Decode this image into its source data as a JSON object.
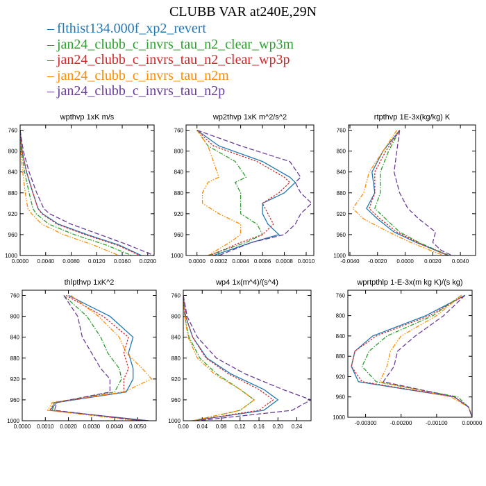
{
  "title": "CLUBB VAR at240E,29N",
  "series_styles": [
    {
      "name": "flthist134.000f_xp2_revert",
      "color": "#1f77b4",
      "dash": ""
    },
    {
      "name": "jan24_clubb_c_invrs_tau_n2_clear_wp3m",
      "color": "#2ca02c",
      "dash": "6,2,1.5,2"
    },
    {
      "name": "jan24_clubb_c_invrs_tau_n2_clear_wp3p",
      "color": "#d62728",
      "dash": "2.5,2"
    },
    {
      "name": "jan24_clubb_c_invrs_tau_n2m",
      "color": "#ff8c00",
      "dash": "6,2,1.5,2,1.5,2"
    },
    {
      "name": "jan24_clubb_c_invrs_tau_n2p",
      "color": "#6a3d9a",
      "dash": "7,3"
    }
  ],
  "chart_data": [
    {
      "type": "line",
      "title": "wpthvp   1xK m/s",
      "xlim": [
        0,
        0.021
      ],
      "ylim": [
        1000,
        750
      ],
      "xticks": [
        "0.0000",
        "0.0040",
        "0.0080",
        "0.0120",
        "0.0160",
        "0.0200"
      ],
      "xtick_values": [
        0,
        0.004,
        0.008,
        0.012,
        0.016,
        0.02
      ],
      "yticks": [
        "760",
        "800",
        "840",
        "880",
        "920",
        "960",
        "1000"
      ],
      "ytick_values": [
        760,
        800,
        840,
        880,
        920,
        960,
        1000
      ],
      "y": [
        760,
        800,
        840,
        880,
        910,
        920,
        940,
        960,
        980,
        1000
      ],
      "series": [
        {
          "name": "flthist134.000f_xp2_revert",
          "values": [
            0,
            0.0003,
            0.001,
            0.002,
            0.0028,
            0.0035,
            0.006,
            0.0105,
            0.0155,
            0.019
          ]
        },
        {
          "name": "jan24_clubb_c_invrs_tau_n2_clear_wp3m",
          "values": [
            0,
            0.0002,
            0.0007,
            0.0014,
            0.002,
            0.0025,
            0.0045,
            0.0085,
            0.0135,
            0.0175
          ]
        },
        {
          "name": "jan24_clubb_c_invrs_tau_n2_clear_wp3p",
          "values": [
            0,
            0.0003,
            0.001,
            0.002,
            0.0028,
            0.0034,
            0.0058,
            0.0102,
            0.0152,
            0.0188
          ]
        },
        {
          "name": "jan24_clubb_c_invrs_tau_n2m",
          "values": [
            0,
            0.0001,
            0.0004,
            0.0008,
            0.0012,
            0.0018,
            0.0034,
            0.0068,
            0.0115,
            0.0155
          ]
        },
        {
          "name": "jan24_clubb_c_invrs_tau_n2p",
          "values": [
            0,
            0.0005,
            0.0014,
            0.0026,
            0.0037,
            0.0046,
            0.008,
            0.0125,
            0.017,
            0.021
          ]
        }
      ]
    },
    {
      "type": "line",
      "title": "wp2thvp   1xK m^2/s^2",
      "xlim": [
        -0.0001,
        0.00107
      ],
      "ylim": [
        1000,
        750
      ],
      "xticks": [
        "0.0000",
        "0.0002",
        "0.0004",
        "0.0006",
        "0.0008",
        "0.0010"
      ],
      "xtick_values": [
        0,
        0.0002,
        0.0004,
        0.0006,
        0.0008,
        0.001
      ],
      "yticks": [
        "760",
        "800",
        "840",
        "880",
        "920",
        "960",
        "1000"
      ],
      "ytick_values": [
        760,
        800,
        840,
        880,
        920,
        960,
        1000
      ],
      "y": [
        760,
        790,
        820,
        850,
        860,
        880,
        900,
        920,
        940,
        960,
        975,
        1000
      ],
      "series": [
        {
          "name": "flthist134.000f_xp2_revert",
          "values": [
            0,
            0.0002,
            0.0006,
            0.00085,
            0.0009,
            0.0008,
            0.0006,
            0.0006,
            0.00065,
            0.00075,
            0.0005,
            0.00015
          ]
        },
        {
          "name": "jan24_clubb_c_invrs_tau_n2_clear_wp3m",
          "values": [
            0,
            0.0001,
            0.00035,
            0.00045,
            0.00035,
            0.0004,
            0.0004,
            0.0004,
            0.00055,
            0.0006,
            0.00045,
            0.0001
          ]
        },
        {
          "name": "jan24_clubb_c_invrs_tau_n2_clear_wp3p",
          "values": [
            0,
            0.00015,
            0.00055,
            0.0008,
            0.00085,
            0.00075,
            0.0006,
            0.00065,
            0.0007,
            0.0006,
            0.0004,
            0.00012
          ]
        },
        {
          "name": "jan24_clubb_c_invrs_tau_n2m",
          "values": [
            0,
            0.0001,
            0.00015,
            0.0002,
            0.0001,
            5e-05,
            5e-05,
            0.0002,
            0.0004,
            0.0004,
            0.0003,
            0.0001
          ]
        },
        {
          "name": "jan24_clubb_c_invrs_tau_n2p",
          "values": [
            0,
            0.0004,
            0.00085,
            0.00095,
            0.0009,
            0.00095,
            0.00105,
            0.00095,
            0.0009,
            0.0008,
            0.0005,
            0.0002
          ]
        }
      ]
    },
    {
      "type": "line",
      "title": "rtpthvp   1E-3x(kg/kg) K",
      "xlim": [
        -0.0041,
        0.0051
      ],
      "ylim": [
        1000,
        750
      ],
      "xticks": [
        "-0.0040",
        "-0.0020",
        "0.0000",
        "0.0020",
        "0.0040"
      ],
      "xtick_values": [
        -0.004,
        -0.002,
        0,
        0.002,
        0.004
      ],
      "yticks": [
        "760",
        "800",
        "840",
        "880",
        "920",
        "960",
        "1000"
      ],
      "ytick_values": [
        760,
        800,
        840,
        880,
        920,
        960,
        1000
      ],
      "y": [
        760,
        800,
        840,
        880,
        910,
        930,
        955,
        975,
        990,
        1000
      ],
      "series": [
        {
          "name": "flthist134.000f_xp2_revert",
          "values": [
            -0.0004,
            -0.0016,
            -0.0024,
            -0.0022,
            -0.0028,
            -0.002,
            -0.0008,
            0.0008,
            0.0022,
            0.0031
          ]
        },
        {
          "name": "jan24_clubb_c_invrs_tau_n2_clear_wp3m",
          "values": [
            -0.0004,
            -0.0012,
            -0.0018,
            -0.0018,
            -0.0022,
            -0.0014,
            -0.0004,
            0.001,
            0.0023,
            0.0032
          ]
        },
        {
          "name": "jan24_clubb_c_invrs_tau_n2_clear_wp3p",
          "values": [
            -0.0004,
            -0.0014,
            -0.0022,
            -0.0022,
            -0.0026,
            -0.0018,
            -0.0006,
            0.0009,
            0.0022,
            0.0031
          ]
        },
        {
          "name": "jan24_clubb_c_invrs_tau_n2m",
          "values": [
            -0.0006,
            -0.0016,
            -0.0026,
            -0.003,
            -0.0038,
            -0.003,
            -0.0012,
            0.0004,
            0.0018,
            0.0028
          ]
        },
        {
          "name": "jan24_clubb_c_invrs_tau_n2p",
          "values": [
            -0.0004,
            -0.0006,
            -0.0008,
            -0.0004,
            0.0002,
            0.001,
            0.0022,
            0.002,
            0.0026,
            0.0034
          ]
        }
      ]
    },
    {
      "type": "line",
      "title": "thlpthvp   1xK^2",
      "xlim": [
        0,
        0.0058
      ],
      "ylim": [
        1000,
        750
      ],
      "xticks": [
        "0.0000",
        "0.0010",
        "0.0020",
        "0.0030",
        "0.0040",
        "0.0050"
      ],
      "xtick_values": [
        0,
        0.001,
        0.002,
        0.003,
        0.004,
        0.005
      ],
      "yticks": [
        "760",
        "800",
        "840",
        "880",
        "920",
        "960",
        "1000"
      ],
      "ytick_values": [
        760,
        800,
        840,
        880,
        920,
        960,
        1000
      ],
      "y": [
        760,
        800,
        840,
        870,
        900,
        920,
        945,
        965,
        980,
        1000
      ],
      "series": [
        {
          "name": "flthist134.000f_xp2_revert",
          "values": [
            0.002,
            0.0038,
            0.0048,
            0.0046,
            0.0048,
            0.0048,
            0.0045,
            0.0015,
            0.0012,
            0.0055
          ]
        },
        {
          "name": "jan24_clubb_c_invrs_tau_n2_clear_wp3m",
          "values": [
            0.0018,
            0.0028,
            0.0034,
            0.0037,
            0.0042,
            0.0043,
            0.004,
            0.0014,
            0.0013,
            0.0052
          ]
        },
        {
          "name": "jan24_clubb_c_invrs_tau_n2_clear_wp3p",
          "values": [
            0.0019,
            0.0035,
            0.0046,
            0.0044,
            0.0046,
            0.0044,
            0.0044,
            0.0014,
            0.0012,
            0.0054
          ]
        },
        {
          "name": "jan24_clubb_c_invrs_tau_n2m",
          "values": [
            0.0021,
            0.0033,
            0.0042,
            0.0045,
            0.0052,
            0.0056,
            0.0044,
            0.0013,
            0.0011,
            0.005
          ]
        },
        {
          "name": "jan24_clubb_c_invrs_tau_n2p",
          "values": [
            0.0018,
            0.0024,
            0.0026,
            0.003,
            0.0034,
            0.0038,
            0.0038,
            0.0015,
            0.0014,
            0.0052
          ]
        }
      ]
    },
    {
      "type": "line",
      "title": "wp4   1x(m^4)/(s^4)",
      "xlim": [
        0,
        0.27
      ],
      "ylim": [
        1000,
        750
      ],
      "xticks": [
        "0.00",
        "0.04",
        "0.08",
        "0.12",
        "0.16",
        "0.20",
        "0.24"
      ],
      "xtick_values": [
        0,
        0.04,
        0.08,
        0.12,
        0.16,
        0.2,
        0.24
      ],
      "yticks": [
        "760",
        "800",
        "840",
        "880",
        "920",
        "960",
        "1000"
      ],
      "ytick_values": [
        760,
        800,
        840,
        880,
        920,
        960,
        1000
      ],
      "y": [
        760,
        800,
        840,
        880,
        910,
        940,
        960,
        980,
        1000
      ],
      "series": [
        {
          "name": "flthist134.000f_xp2_revert",
          "values": [
            0,
            0.005,
            0.02,
            0.05,
            0.1,
            0.17,
            0.2,
            0.17,
            0.02
          ]
        },
        {
          "name": "jan24_clubb_c_invrs_tau_n2_clear_wp3m",
          "values": [
            0,
            0.003,
            0.012,
            0.035,
            0.07,
            0.12,
            0.15,
            0.12,
            0.02
          ]
        },
        {
          "name": "jan24_clubb_c_invrs_tau_n2_clear_wp3p",
          "values": [
            0,
            0.005,
            0.02,
            0.048,
            0.095,
            0.16,
            0.19,
            0.16,
            0.02
          ]
        },
        {
          "name": "jan24_clubb_c_invrs_tau_n2m",
          "values": [
            0,
            0.003,
            0.01,
            0.03,
            0.065,
            0.12,
            0.15,
            0.12,
            0.02
          ]
        },
        {
          "name": "jan24_clubb_c_invrs_tau_n2p",
          "values": [
            0,
            0.008,
            0.03,
            0.07,
            0.13,
            0.21,
            0.27,
            0.23,
            0.03
          ]
        }
      ]
    },
    {
      "type": "line",
      "title": "wprtpthlp   1-E-3x(m kg K)/(s kg)",
      "xlim": [
        -0.0035,
        0.0
      ],
      "ylim": [
        1000,
        750
      ],
      "xticks": [
        "-0.00300",
        "-0.00200",
        "-0.00100",
        "0.00000"
      ],
      "xtick_values": [
        -0.003,
        -0.002,
        -0.001,
        0
      ],
      "yticks": [
        "760",
        "800",
        "840",
        "880",
        "920",
        "960",
        "1000"
      ],
      "ytick_values": [
        760,
        800,
        840,
        880,
        920,
        960,
        1000
      ],
      "y": [
        760,
        800,
        840,
        870,
        900,
        930,
        960,
        980,
        1000
      ],
      "series": [
        {
          "name": "flthist134.000f_xp2_revert",
          "values": [
            -0.0002,
            -0.0013,
            -0.0028,
            -0.0033,
            -0.0034,
            -0.0032,
            -0.0005,
            -0.0001,
            0
          ]
        },
        {
          "name": "jan24_clubb_c_invrs_tau_n2_clear_wp3m",
          "values": [
            -0.0003,
            -0.0011,
            -0.0024,
            -0.0029,
            -0.0031,
            -0.0027,
            -0.0004,
            -0.0001,
            0
          ]
        },
        {
          "name": "jan24_clubb_c_invrs_tau_n2_clear_wp3p",
          "values": [
            -0.0002,
            -0.0012,
            -0.0027,
            -0.0033,
            -0.0034,
            -0.0031,
            -0.0005,
            -0.0001,
            0
          ]
        },
        {
          "name": "jan24_clubb_c_invrs_tau_n2m",
          "values": [
            -0.0003,
            -0.001,
            -0.002,
            -0.0023,
            -0.0024,
            -0.0026,
            -0.0006,
            -0.0001,
            0
          ]
        },
        {
          "name": "jan24_clubb_c_invrs_tau_n2p",
          "values": [
            -0.0002,
            -0.0008,
            -0.0016,
            -0.0021,
            -0.0022,
            -0.0025,
            -0.0005,
            -0.0001,
            0
          ]
        }
      ]
    }
  ]
}
